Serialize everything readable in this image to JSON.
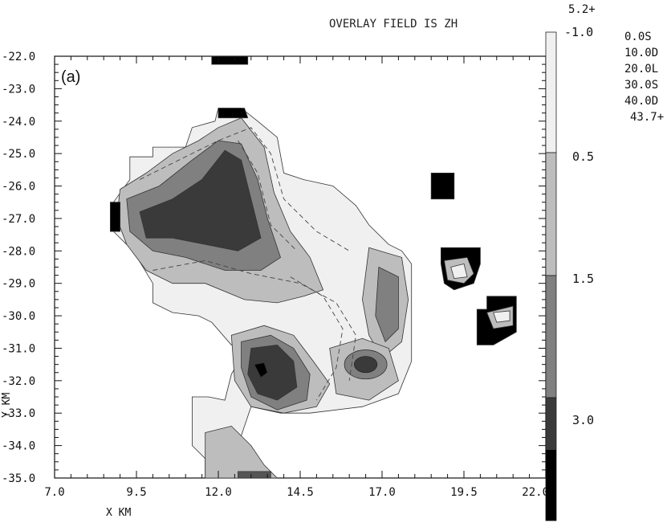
{
  "chart_data": {
    "type": "heatmap",
    "title": "OVERLAY FIELD IS ZH",
    "panel_label": "(a)",
    "xlabel": "X KM",
    "ylabel": "Y KM",
    "xlim": [
      7.0,
      22.0
    ],
    "ylim": [
      -35.0,
      -22.0
    ],
    "x_ticks": [
      "7.0",
      "9.5",
      "12.0",
      "14.5",
      "17.0",
      "19.5",
      "22.0"
    ],
    "y_ticks": [
      "-22.0",
      "-23.0",
      "-24.0",
      "-25.0",
      "-26.0",
      "-27.0",
      "-28.0",
      "-29.0",
      "-30.0",
      "-31.0",
      "-32.0",
      "-33.0",
      "-34.0",
      "-35.0"
    ],
    "colorbar": {
      "top_label": "5.2+",
      "levels": [
        {
          "label": "-1.0",
          "color": "#f0f0f0"
        },
        {
          "label": "0.5",
          "color": "#bdbdbd"
        },
        {
          "label": "1.5",
          "color": "#808080"
        },
        {
          "label": "3.0",
          "color": "#3a3a3a"
        }
      ],
      "bottom_color": "#000000"
    },
    "overlay_legend": [
      "0.0S",
      "10.0D",
      "20.0L",
      "30.0S",
      "40.0D",
      "43.7+"
    ]
  }
}
